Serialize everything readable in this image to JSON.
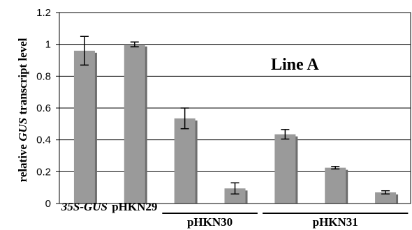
{
  "chart_data": {
    "type": "bar",
    "title": "",
    "annotation": "Line A",
    "ylabel": {
      "prefix": "relative ",
      "italic": "GUS",
      "suffix": " transcript level"
    },
    "ylim": [
      0,
      1.2
    ],
    "yticks": [
      "0",
      "0.2",
      "0.4",
      "0.6",
      "0.8",
      "1",
      "1.2"
    ],
    "grid": true,
    "bars": [
      {
        "value": 0.96,
        "error": 0.09
      },
      {
        "value": 1.0,
        "error": 0.015
      },
      {
        "value": 0.535,
        "error": 0.065
      },
      {
        "value": 0.095,
        "error": 0.035
      },
      {
        "value": 0.435,
        "error": 0.03
      },
      {
        "value": 0.225,
        "error": 0.008
      },
      {
        "value": 0.07,
        "error": 0.01
      }
    ],
    "groups": [
      {
        "label": "35S-GUS",
        "italic": true,
        "bars": [
          0
        ],
        "underline": false
      },
      {
        "label": "pHKN29",
        "italic": false,
        "bars": [
          1
        ],
        "underline": false
      },
      {
        "label": "pHKN30",
        "italic": false,
        "bars": [
          2,
          3
        ],
        "underline": true
      },
      {
        "label": "pHKN31",
        "italic": false,
        "bars": [
          4,
          5,
          6
        ],
        "underline": true
      }
    ],
    "colors": {
      "bar": "#9a9a9a",
      "bar_shadow": "#6e6e6e",
      "grid": "#000000"
    }
  }
}
